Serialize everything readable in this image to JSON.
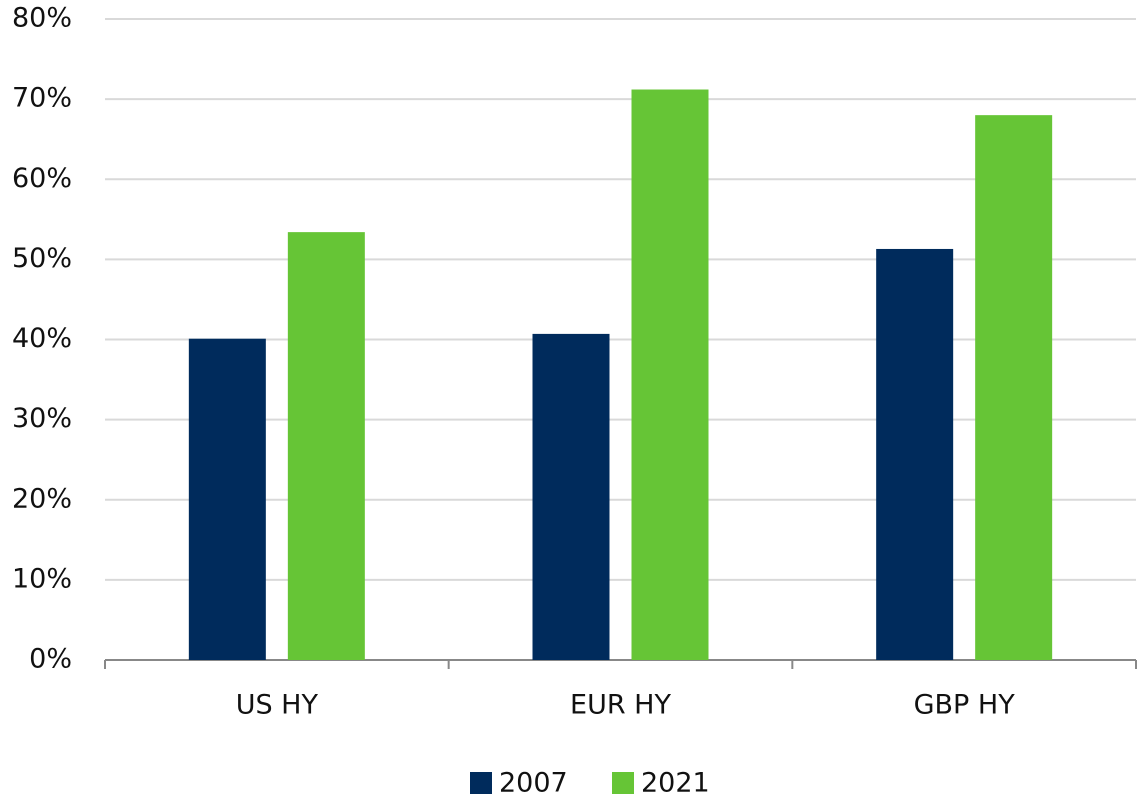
{
  "chart_data": {
    "type": "bar",
    "categories": [
      "US HY",
      "EUR HY",
      "GBP HY"
    ],
    "series": [
      {
        "name": "2007",
        "color": "#002b5c",
        "values": [
          40.1,
          40.7,
          51.3
        ]
      },
      {
        "name": "2021",
        "color": "#66c536",
        "values": [
          53.4,
          71.2,
          68.0
        ]
      }
    ],
    "ylim": [
      0,
      80
    ],
    "yticks": [
      {
        "value": 0,
        "label": "0%"
      },
      {
        "value": 10,
        "label": "10%"
      },
      {
        "value": 20,
        "label": "20%"
      },
      {
        "value": 30,
        "label": "30%"
      },
      {
        "value": 40,
        "label": "40%"
      },
      {
        "value": 50,
        "label": "50%"
      },
      {
        "value": 60,
        "label": "60%"
      },
      {
        "value": 70,
        "label": "70%"
      },
      {
        "value": 80,
        "label": "80%"
      }
    ],
    "grid": true,
    "legend": "bottom"
  }
}
